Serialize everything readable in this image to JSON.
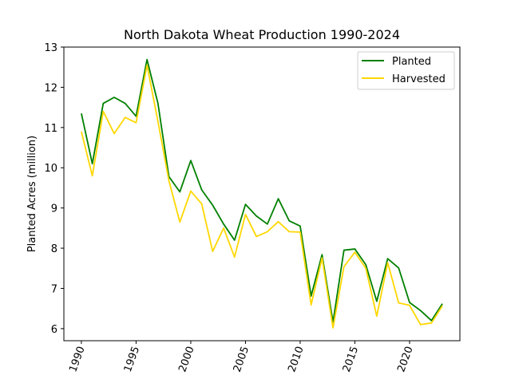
{
  "chart_data": {
    "type": "line",
    "title": "North Dakota Wheat Production 1990-2024",
    "xlabel": "",
    "ylabel": "Planted Acres (million)",
    "xlim": [
      1988.4,
      2024.6
    ],
    "ylim": [
      5.7,
      13.0
    ],
    "xticks": [
      1990,
      1995,
      2000,
      2005,
      2010,
      2015,
      2020
    ],
    "yticks": [
      6,
      7,
      8,
      9,
      10,
      11,
      12,
      13
    ],
    "grid": false,
    "legend_position": "top-right",
    "x": [
      1990,
      1991,
      1992,
      1993,
      1994,
      1995,
      1996,
      1997,
      1998,
      1999,
      2000,
      2001,
      2002,
      2003,
      2004,
      2005,
      2006,
      2007,
      2008,
      2009,
      2010,
      2011,
      2012,
      2013,
      2014,
      2015,
      2016,
      2017,
      2018,
      2019,
      2020,
      2021,
      2022,
      2023
    ],
    "series": [
      {
        "name": "Planted",
        "color": "#008000",
        "values": [
          11.35,
          10.1,
          11.6,
          11.75,
          11.6,
          11.28,
          12.69,
          11.6,
          9.78,
          9.4,
          10.18,
          9.45,
          9.07,
          8.6,
          8.2,
          9.09,
          8.8,
          8.6,
          9.23,
          8.68,
          8.55,
          6.81,
          7.84,
          6.16,
          7.95,
          7.98,
          7.59,
          6.68,
          7.74,
          7.51,
          6.65,
          6.45,
          6.2,
          6.62
        ]
      },
      {
        "name": "Harvested",
        "color": "#FFD700",
        "values": [
          10.9,
          9.8,
          11.4,
          10.85,
          11.25,
          11.12,
          12.55,
          11.15,
          9.68,
          8.65,
          9.42,
          9.1,
          7.92,
          8.5,
          7.78,
          8.84,
          8.29,
          8.41,
          8.66,
          8.41,
          8.4,
          6.59,
          7.76,
          6.02,
          7.54,
          7.9,
          7.5,
          6.31,
          7.64,
          6.64,
          6.58,
          6.1,
          6.14,
          6.57
        ]
      }
    ]
  }
}
